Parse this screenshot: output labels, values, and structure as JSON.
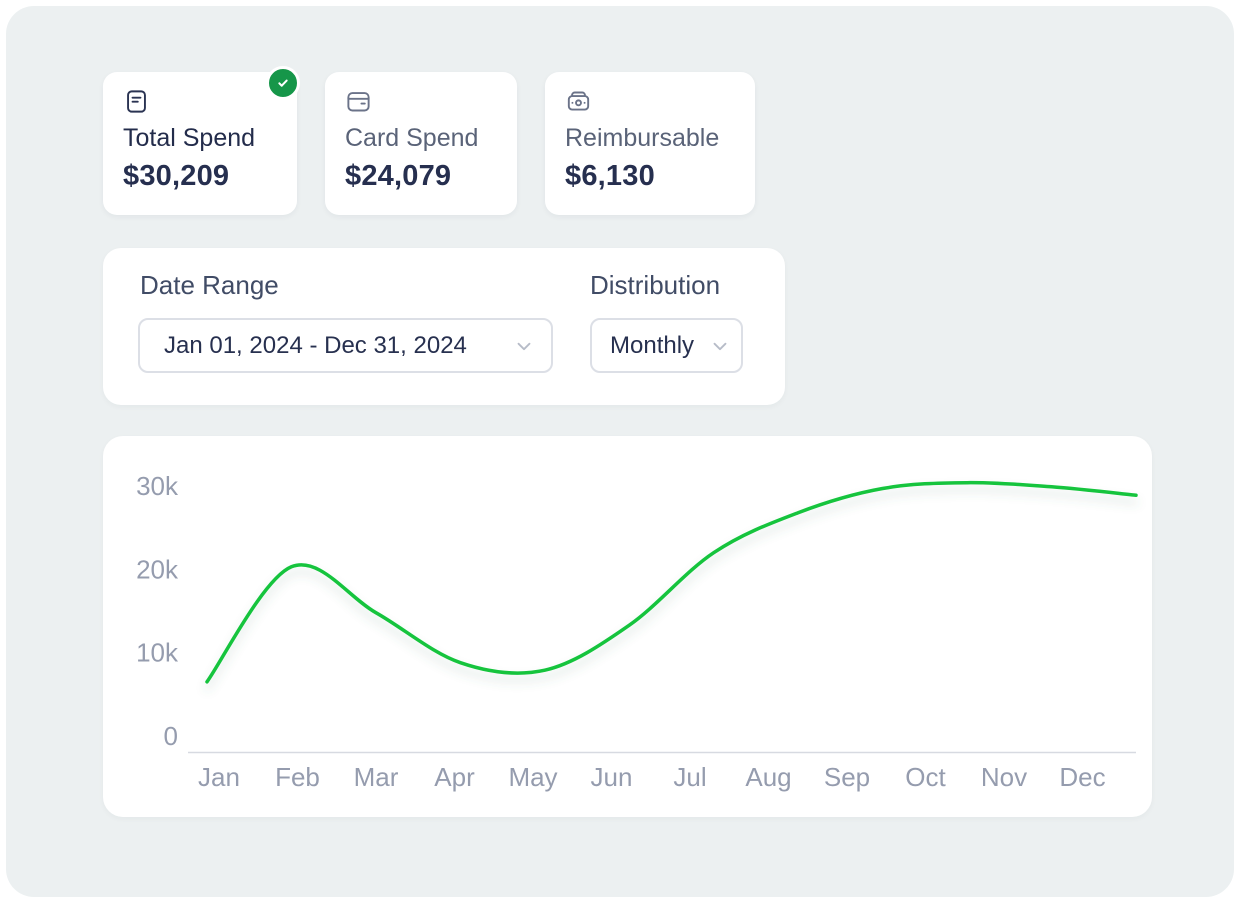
{
  "page": {
    "background": "#ecf0f1"
  },
  "stats": {
    "cards": [
      {
        "label": "Total Spend",
        "value": "$30,209",
        "icon": "receipt-icon",
        "selected": true
      },
      {
        "label": "Card Spend",
        "value": "$24,079",
        "icon": "credit-card-icon",
        "selected": false
      },
      {
        "label": "Reimbursable",
        "value": "$6,130",
        "icon": "wallet-icon",
        "selected": false
      }
    ]
  },
  "filters": {
    "date_range": {
      "label": "Date Range",
      "value": "Jan 01, 2024 - Dec 31, 2024"
    },
    "distribution": {
      "label": "Distribution",
      "value": "Monthly"
    }
  },
  "chart_data": {
    "type": "line",
    "categories": [
      "Jan",
      "Feb",
      "Mar",
      "Apr",
      "May",
      "Jun",
      "Jul",
      "Aug",
      "Sep",
      "Oct",
      "Nov",
      "Dec"
    ],
    "values": [
      6500,
      20300,
      14800,
      8800,
      7900,
      13300,
      22000,
      26800,
      29700,
      30400,
      29900,
      28900
    ],
    "title": "",
    "xlabel": "",
    "ylabel": "",
    "ylim": [
      0,
      32000
    ],
    "yticks": [
      {
        "value": 0,
        "label": "0"
      },
      {
        "value": 10000,
        "label": "10k"
      },
      {
        "value": 20000,
        "label": "20k"
      },
      {
        "value": 30000,
        "label": "30k"
      }
    ],
    "grid": false,
    "legend": false,
    "line_color": "#12c43e",
    "axis_color": "#d7dae1",
    "tick_color": "#959cae"
  },
  "colors": {
    "accent_green": "#12c43e",
    "badge_green": "#169649",
    "text_dark": "#262f4f",
    "text_muted": "#5a6378"
  }
}
